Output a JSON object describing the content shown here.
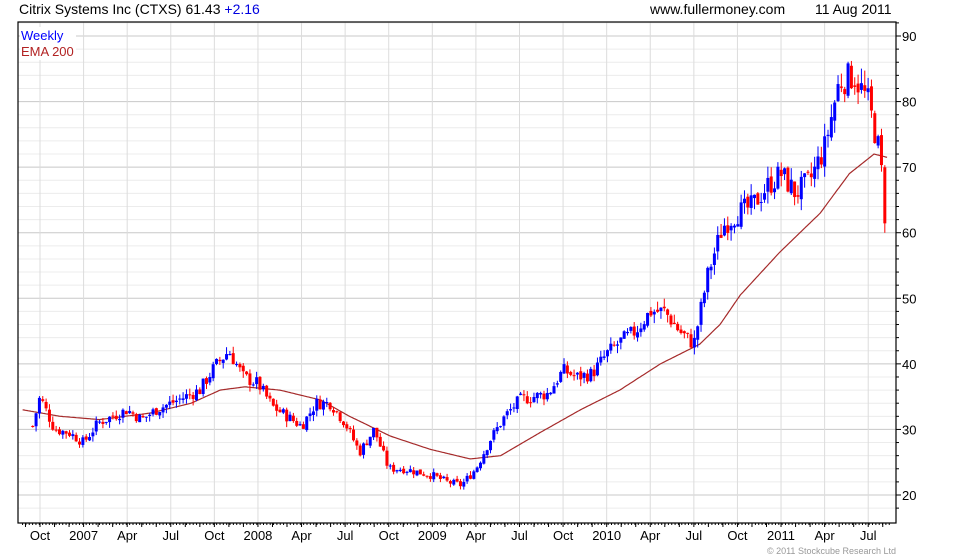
{
  "header": {
    "title": "Citrix Systems Inc (CTXS)",
    "last": "61.43",
    "change": "+2.16",
    "website": "www.fullermoney.com",
    "date": "11 Aug 2011"
  },
  "footer": {
    "copyright": "© 2011 Stockcube Research Ltd"
  },
  "colors": {
    "up": "#0000ff",
    "down": "#ff0000",
    "ema": "#a52a2a",
    "legend_weekly": "#0000ff",
    "legend_ema": "#b22222"
  },
  "chart_data": {
    "type": "candlestick",
    "title": "Citrix Systems Inc (CTXS) 61.43 +2.16",
    "legend": [
      "Weekly",
      "EMA 200"
    ],
    "legend_placement": "top-left",
    "ylim": [
      18,
      92
    ],
    "yticks": [
      "20",
      "30",
      "40",
      "50",
      "60",
      "70",
      "80",
      "90"
    ],
    "ytick_values": [
      20,
      30,
      40,
      50,
      60,
      70,
      80,
      90
    ],
    "xtick_labels": [
      "Oct",
      "2007",
      "Apr",
      "Jul",
      "Oct",
      "2008",
      "Apr",
      "Jul",
      "Oct",
      "2009",
      "Apr",
      "Jul",
      "Oct",
      "2010",
      "Apr",
      "Jul",
      "Oct",
      "2011",
      "Apr",
      "Jul"
    ],
    "x_unit": "months since Oct 2006",
    "xlim": [
      -1.25,
      59.1
    ],
    "monthly_close": [
      [
        -0.5,
        30.5
      ],
      [
        0,
        35
      ],
      [
        1,
        30
      ],
      [
        2,
        29.5
      ],
      [
        3,
        28
      ],
      [
        4,
        31
      ],
      [
        5,
        32
      ],
      [
        6,
        33
      ],
      [
        7,
        31.5
      ],
      [
        8,
        33
      ],
      [
        9,
        34
      ],
      [
        10,
        35
      ],
      [
        11,
        36
      ],
      [
        12,
        39.5
      ],
      [
        13,
        42
      ],
      [
        14,
        38
      ],
      [
        15,
        37
      ],
      [
        16,
        33.5
      ],
      [
        17,
        32
      ],
      [
        18,
        30.5
      ],
      [
        19,
        34
      ],
      [
        20,
        34
      ],
      [
        21,
        31
      ],
      [
        22,
        26.5
      ],
      [
        23,
        30
      ],
      [
        24,
        24
      ],
      [
        25,
        24
      ],
      [
        26,
        23.5
      ],
      [
        27,
        23
      ],
      [
        28,
        22
      ],
      [
        29,
        21.5
      ],
      [
        30,
        24
      ],
      [
        31,
        28.5
      ],
      [
        32,
        32
      ],
      [
        33,
        34.5
      ],
      [
        34,
        35
      ],
      [
        35,
        35.5
      ],
      [
        36,
        39
      ],
      [
        37,
        38
      ],
      [
        38,
        38.5
      ],
      [
        39,
        41.5
      ],
      [
        40,
        43.5
      ],
      [
        41,
        45
      ],
      [
        42,
        48
      ],
      [
        43,
        48
      ],
      [
        44,
        45
      ],
      [
        45,
        43
      ],
      [
        46,
        54
      ],
      [
        47,
        61
      ],
      [
        48,
        63
      ],
      [
        49,
        64
      ],
      [
        50,
        67
      ],
      [
        51,
        69
      ],
      [
        52,
        66
      ],
      [
        53,
        68
      ],
      [
        54,
        73
      ],
      [
        55,
        83
      ],
      [
        56,
        84
      ],
      [
        57,
        80
      ],
      [
        57.7,
        73
      ],
      [
        58.1,
        66
      ],
      [
        58.33,
        61.43
      ]
    ],
    "ema200": [
      [
        -1.2,
        33
      ],
      [
        1.4,
        32
      ],
      [
        4.1,
        31.5
      ],
      [
        7.6,
        32.5
      ],
      [
        10.4,
        34
      ],
      [
        12.4,
        36
      ],
      [
        14.1,
        36.5
      ],
      [
        16.5,
        36
      ],
      [
        19.3,
        34.5
      ],
      [
        21.3,
        32
      ],
      [
        24.1,
        29
      ],
      [
        26.8,
        27
      ],
      [
        29.6,
        25.5
      ],
      [
        31.7,
        26
      ],
      [
        34.4,
        29.5
      ],
      [
        37.2,
        33
      ],
      [
        39.9,
        36
      ],
      [
        42.7,
        40
      ],
      [
        45.4,
        43
      ],
      [
        46.8,
        46
      ],
      [
        48.2,
        50.5
      ],
      [
        50.9,
        57
      ],
      [
        53.7,
        63
      ],
      [
        55.7,
        69
      ],
      [
        57.4,
        72
      ],
      [
        58.3,
        71.5
      ]
    ]
  }
}
